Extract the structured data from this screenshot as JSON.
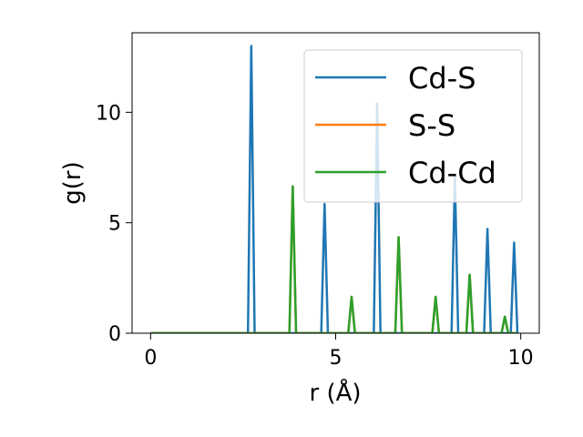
{
  "chart_data": {
    "type": "line",
    "xlabel": "r (Å)",
    "ylabel": "g(r)",
    "xlim": [
      -0.5,
      10.5
    ],
    "ylim": [
      0,
      13.6
    ],
    "xticks": [
      0,
      5,
      10
    ],
    "yticks": [
      0,
      5,
      10
    ],
    "grid": false,
    "legend_position": "upper-right",
    "series": [
      {
        "name": "Cd-S",
        "color": "#1f77b4",
        "peaks": [
          {
            "r": 2.72,
            "g": 13.0
          },
          {
            "r": 4.7,
            "g": 5.85
          },
          {
            "r": 6.12,
            "g": 10.4
          },
          {
            "r": 8.22,
            "g": 7.1
          },
          {
            "r": 9.1,
            "g": 4.72
          },
          {
            "r": 9.82,
            "g": 4.1
          }
        ]
      },
      {
        "name": "S-S",
        "color": "#ff7f0e",
        "peaks": [
          {
            "r": 3.84,
            "g": 6.65
          },
          {
            "r": 5.43,
            "g": 1.65
          },
          {
            "r": 6.7,
            "g": 4.35
          },
          {
            "r": 7.7,
            "g": 1.65
          },
          {
            "r": 8.62,
            "g": 2.65
          },
          {
            "r": 9.57,
            "g": 0.75
          }
        ]
      },
      {
        "name": "Cd-Cd",
        "color": "#2ca02c",
        "peaks": [
          {
            "r": 3.84,
            "g": 6.65
          },
          {
            "r": 5.43,
            "g": 1.65
          },
          {
            "r": 6.7,
            "g": 4.35
          },
          {
            "r": 7.7,
            "g": 1.65
          },
          {
            "r": 8.62,
            "g": 2.65
          },
          {
            "r": 9.57,
            "g": 0.75
          }
        ]
      }
    ],
    "r_start": 0,
    "r_end": 9.9
  }
}
